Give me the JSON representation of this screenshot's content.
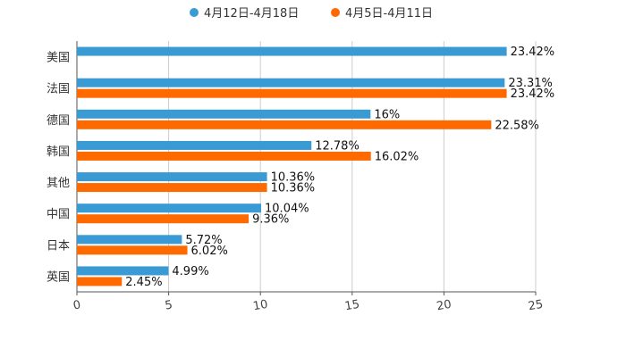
{
  "chart_data": {
    "type": "bar",
    "orientation": "horizontal",
    "title": "",
    "xlabel": "",
    "ylabel": "",
    "xlim": [
      0,
      25
    ],
    "xticks": [
      "0",
      "5",
      "10",
      "15",
      "20",
      "25"
    ],
    "grid": true,
    "legend_position": "top-center",
    "categories": [
      "美国",
      "法国",
      "德国",
      "韩国",
      "其他",
      "中国",
      "日本",
      "英国"
    ],
    "series": [
      {
        "name": "4月12日-4月18日",
        "color": "#3a9ad3",
        "values": [
          23.42,
          23.31,
          16,
          12.78,
          10.36,
          10.04,
          5.72,
          4.99
        ],
        "labels": [
          "23.42%",
          "23.31%",
          "16%",
          "12.78%",
          "10.36%",
          "10.04%",
          "5.72%",
          "4.99%"
        ]
      },
      {
        "name": "4月5日-4月11日",
        "color": "#ff6a00",
        "values": [
          null,
          23.42,
          22.58,
          16.02,
          10.36,
          9.36,
          6.02,
          2.45
        ],
        "labels": [
          "",
          "23.42%",
          "22.58%",
          "16.02%",
          "10.36%",
          "9.36%",
          "6.02%",
          "2.45%"
        ]
      }
    ]
  }
}
